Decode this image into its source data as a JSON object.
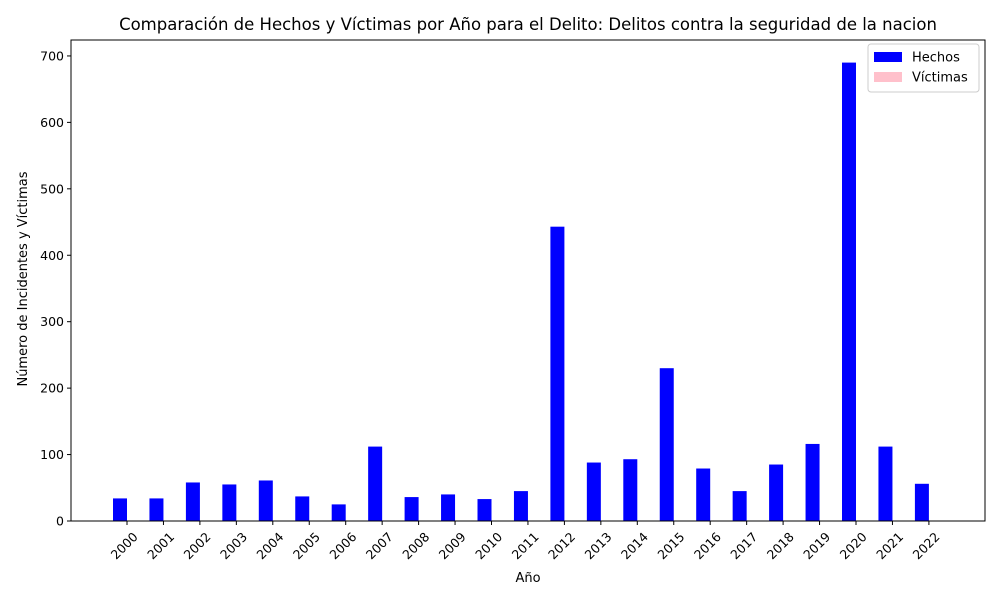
{
  "chart_data": {
    "type": "bar",
    "title": "Comparación de Hechos y Víctimas por Año para el Delito: Delitos contra la seguridad de la nacion",
    "xlabel": "Año",
    "ylabel": "Número de Incidentes y Víctimas",
    "categories": [
      "2000",
      "2001",
      "2002",
      "2003",
      "2004",
      "2005",
      "2006",
      "2007",
      "2008",
      "2009",
      "2010",
      "2011",
      "2012",
      "2013",
      "2014",
      "2015",
      "2016",
      "2017",
      "2018",
      "2019",
      "2020",
      "2021",
      "2022"
    ],
    "series": [
      {
        "name": "Hechos",
        "color": "#0000ff",
        "values": [
          34,
          34,
          58,
          55,
          61,
          37,
          25,
          112,
          36,
          40,
          33,
          45,
          443,
          88,
          93,
          230,
          79,
          45,
          85,
          116,
          690,
          112,
          56
        ]
      },
      {
        "name": "Víctimas",
        "color": "#ffc0cb",
        "values": [
          0,
          0,
          0,
          0,
          0,
          0,
          0,
          0,
          0,
          0,
          0,
          0,
          0,
          0,
          0,
          0,
          0,
          0,
          0,
          0,
          0,
          0,
          0
        ]
      }
    ],
    "yticks": [
      0,
      100,
      200,
      300,
      400,
      500,
      600,
      700
    ],
    "ylim": [
      0,
      724
    ],
    "grid": false,
    "legend_position": "top-right"
  }
}
